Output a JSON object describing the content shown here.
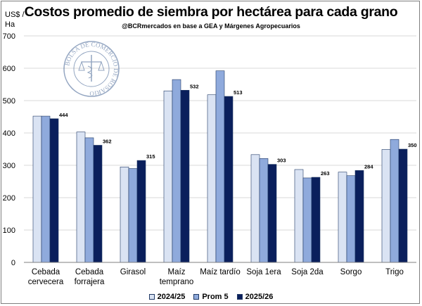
{
  "chart_data": {
    "type": "bar",
    "title": "Costos promedio de siembra por hectárea para cada grano",
    "subtitle": "@BCRmercados en base a GEA y Márgenes Agropecuarios",
    "ylabel": "US$ / Ha",
    "ylabel_lines": [
      "US$ /",
      "Ha"
    ],
    "ylim": [
      0,
      700
    ],
    "yticks": [
      0,
      100,
      200,
      300,
      400,
      500,
      600,
      700
    ],
    "grid": true,
    "legend_position": "bottom",
    "categories": [
      [
        "Cebada",
        "cervecera"
      ],
      [
        "Cebada",
        "forrajera"
      ],
      [
        "Girasol"
      ],
      [
        "Maíz",
        "temprano"
      ],
      [
        "Maíz tardío"
      ],
      [
        "Soja 1era"
      ],
      [
        "Soja 2da"
      ],
      [
        "Sorgo"
      ],
      [
        "Trigo"
      ]
    ],
    "series": [
      {
        "name": "2024/25",
        "color": "#dae3f3",
        "values": [
          452,
          403,
          295,
          530,
          518,
          333,
          287,
          279,
          349
        ]
      },
      {
        "name": "Prom 5",
        "color": "#8faadc",
        "values": [
          452,
          385,
          290,
          565,
          592,
          321,
          261,
          268,
          380
        ]
      },
      {
        "name": "2025/26",
        "color": "#0a1f5c",
        "values": [
          444,
          362,
          315,
          532,
          513,
          303,
          263,
          284,
          350
        ]
      }
    ],
    "data_labels": [
      "444",
      "362",
      "315",
      "532",
      "513",
      "303",
      "263",
      "284",
      "350"
    ]
  },
  "watermark": {
    "text": "BOLSA DE COMERCIO DE ROSARIO"
  },
  "colors": {
    "bar_border": "#1f3864",
    "grid": "#d9d9d9",
    "axis": "#7f7f7f"
  }
}
